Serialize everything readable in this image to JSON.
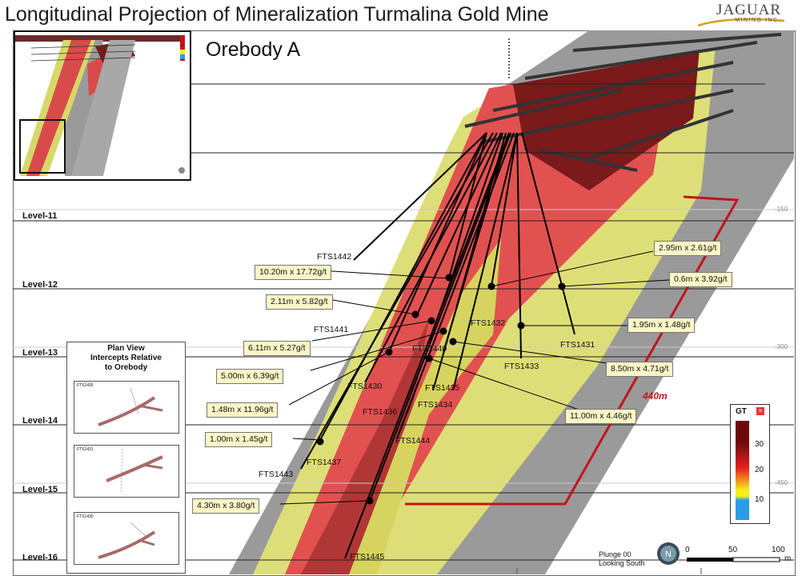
{
  "title": "Longitudinal Projection of Mineralization Turmalina Gold Mine",
  "logo": {
    "word": "JAGUAR",
    "sub": "MINING INC."
  },
  "orebody_label": "Orebody A",
  "levels": [
    "Level-11",
    "Level-12",
    "Level-13",
    "Level-14",
    "Level-15",
    "Level-16"
  ],
  "elevations": [
    "-150",
    "-300",
    "-450"
  ],
  "distance_label": "440m",
  "callouts": [
    "10.20m x 17.72g/t",
    "2.11m x 5.82g/t",
    "6.11m x 5.27g/t",
    "5.00m x 6.39g/t",
    "1.48m x 11.96g/t",
    "1.00m x 1.45g/t",
    "4.30m x 3.80g/t",
    "2.95m x 2.61g/t",
    "0.6m x 3.92g/t",
    "1.95m x 1.48g/t",
    "8.50m x 4.71g/t",
    "11.00m x 4.46g/t"
  ],
  "holes": [
    "FTS1442",
    "FTS1441",
    "FTS1440",
    "FTS1432",
    "FTS1431",
    "FTS1433",
    "FTS1430",
    "FTS1435",
    "FTS1436",
    "FTS1434",
    "FTS1444",
    "FTS1437",
    "FTS1443",
    "FTS1445"
  ],
  "plan_view": {
    "title_lines": [
      "Plan View",
      "Intercepts Relative",
      "to Orebody"
    ],
    "panels": [
      "FTS1435",
      "FTS1431",
      "FTS1430"
    ]
  },
  "legend": {
    "title": "GT",
    "ticks": [
      "30",
      "20",
      "10"
    ],
    "colors": [
      "#6e0a0a",
      "#e8221f",
      "#f5ef1a",
      "#2a9de8"
    ]
  },
  "plunge": [
    "Plunge 00",
    "Looking South"
  ],
  "scale": {
    "labels": [
      "0",
      "50",
      "100"
    ],
    "unit": "m"
  },
  "colors": {
    "red_line": "#c0151c",
    "callout_bg": "#fbf6c6"
  }
}
